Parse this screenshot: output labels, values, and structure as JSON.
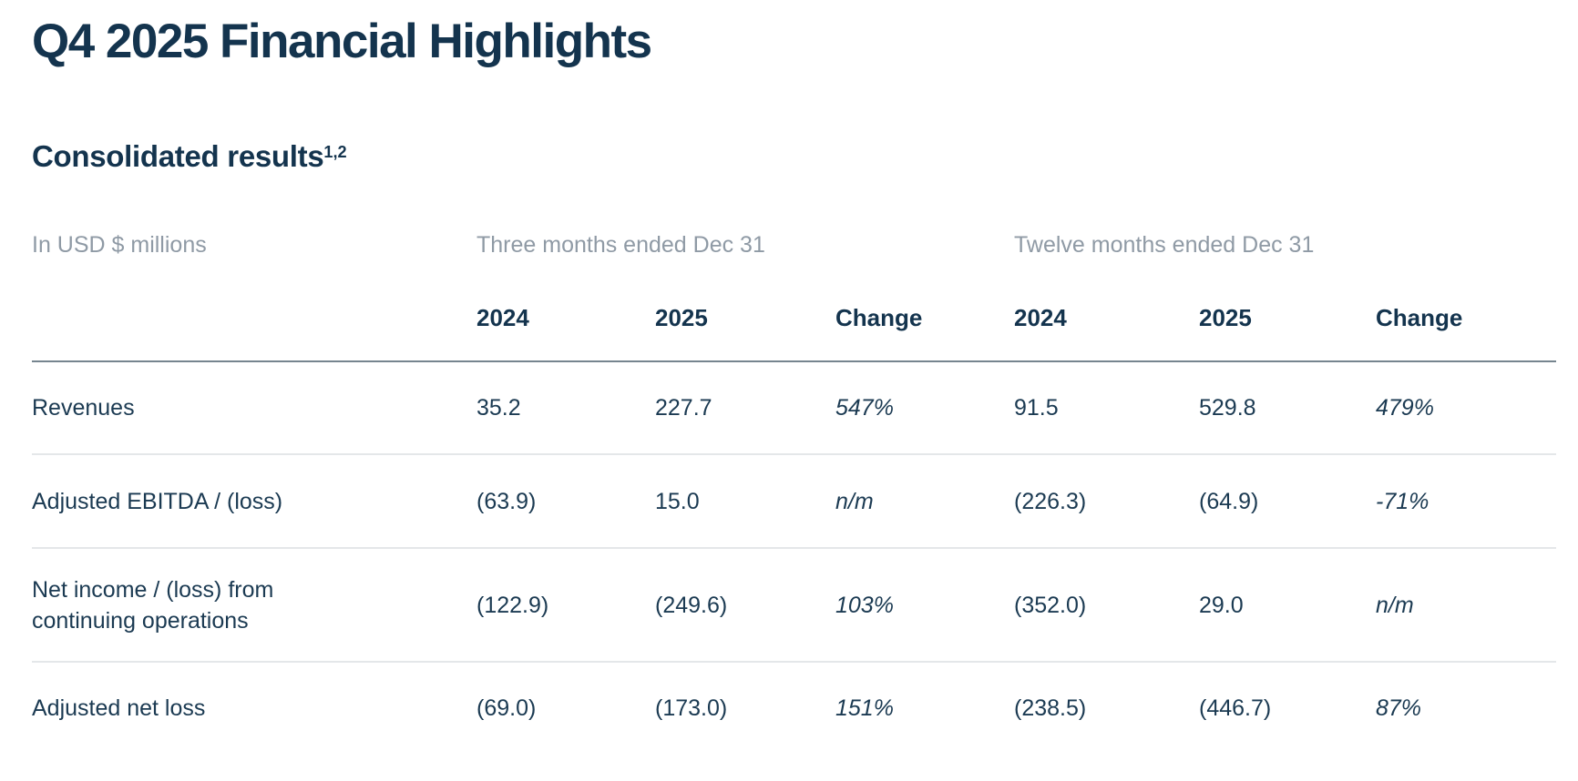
{
  "page": {
    "title": "Q4 2025 Financial Highlights",
    "section_heading": "Consolidated results",
    "section_heading_superscript": "1,2"
  },
  "table": {
    "unit_label": "In USD $ millions",
    "period_groups": [
      {
        "label": "Three months ended Dec 31"
      },
      {
        "label": "Twelve months ended Dec 31"
      }
    ],
    "column_headers": [
      "2024",
      "2025",
      "Change",
      "2024",
      "2025",
      "Change"
    ],
    "rows": [
      {
        "label": "Revenues",
        "values": [
          "35.2",
          "227.7",
          "547%",
          "91.5",
          "529.8",
          "479%"
        ]
      },
      {
        "label": "Adjusted EBITDA / (loss)",
        "values": [
          "(63.9)",
          "15.0",
          "n/m",
          "(226.3)",
          "(64.9)",
          "-71%"
        ]
      },
      {
        "label": "Net income / (loss) from continuing operations",
        "values": [
          "(122.9)",
          "(249.6)",
          "103%",
          "(352.0)",
          "29.0",
          "n/m"
        ]
      },
      {
        "label": "Adjusted net loss",
        "values": [
          "(69.0)",
          "(173.0)",
          "151%",
          "(238.5)",
          "(446.7)",
          "87%"
        ]
      }
    ]
  },
  "colors": {
    "heading": "#14344e",
    "body_text": "#1b3a52",
    "muted_text": "#8f9aa5",
    "divider_dark": "#76858f",
    "divider_light": "#e4e7e9",
    "background": "#ffffff"
  }
}
